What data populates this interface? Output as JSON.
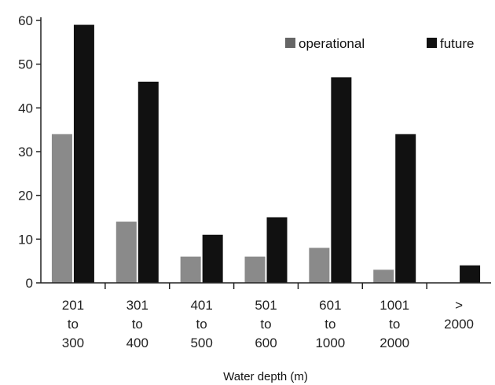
{
  "chart_data": {
    "type": "bar",
    "categories": [
      [
        "201",
        "to",
        "300"
      ],
      [
        "301",
        "to",
        "400"
      ],
      [
        "401",
        "to",
        "500"
      ],
      [
        "501",
        "to",
        "600"
      ],
      [
        "601",
        "to",
        "1000"
      ],
      [
        "1001",
        "to",
        "2000"
      ],
      [
        ">",
        "2000"
      ]
    ],
    "series": [
      {
        "name": "operational",
        "values": [
          34,
          14,
          6,
          6,
          8,
          3,
          0
        ],
        "color": "#8a8a8a",
        "legend_color": "#666666"
      },
      {
        "name": "future",
        "values": [
          59,
          46,
          11,
          15,
          47,
          34,
          4
        ],
        "color": "#111111",
        "legend_color": "#111111"
      }
    ],
    "xlabel": "Water depth (m)",
    "ylabel": "",
    "ylim": [
      0,
      60
    ],
    "yticks": [
      0,
      10,
      20,
      30,
      40,
      50,
      60
    ],
    "grid": false,
    "legend_position": "top-right"
  }
}
